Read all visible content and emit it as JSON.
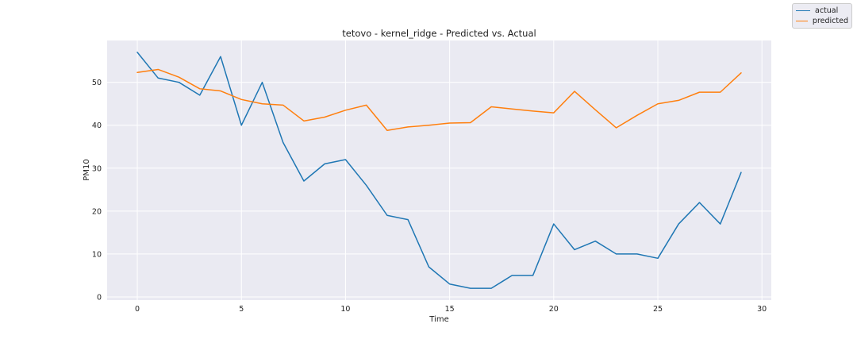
{
  "chart_data": {
    "type": "line",
    "title": "tetovo - kernel_ridge - Predicted vs. Actual",
    "xlabel": "Time",
    "ylabel": "PM10",
    "xlim": [
      -1.45,
      30.45
    ],
    "ylim": [
      -0.75,
      59.75
    ],
    "xticks": [
      0,
      5,
      10,
      15,
      20,
      25,
      30
    ],
    "yticks": [
      0,
      10,
      20,
      30,
      40,
      50
    ],
    "grid": true,
    "legend_position": "top-right",
    "x": [
      0,
      1,
      2,
      3,
      4,
      5,
      6,
      7,
      8,
      9,
      10,
      11,
      12,
      13,
      14,
      15,
      16,
      17,
      18,
      19,
      20,
      21,
      22,
      23,
      24,
      25,
      26,
      27,
      28,
      29
    ],
    "series": [
      {
        "name": "actual",
        "color": "#1f77b4",
        "values": [
          57,
          51,
          50,
          47,
          56,
          40,
          50,
          36,
          27,
          31,
          32,
          26,
          19,
          18,
          7,
          3,
          2,
          2,
          5,
          5,
          17,
          11,
          13,
          10,
          10,
          9,
          17,
          22,
          17,
          29
        ]
      },
      {
        "name": "predicted",
        "color": "#ff7f0e",
        "values": [
          52.3,
          53,
          51.2,
          48.5,
          48,
          46,
          45,
          44.7,
          41,
          41.9,
          43.5,
          44.7,
          38.8,
          39.6,
          40,
          40.5,
          40.6,
          44.3,
          43.8,
          43.3,
          42.9,
          47.9,
          43.6,
          39.4,
          42.3,
          45,
          45.8,
          47.7,
          47.7,
          52.2
        ]
      }
    ]
  }
}
